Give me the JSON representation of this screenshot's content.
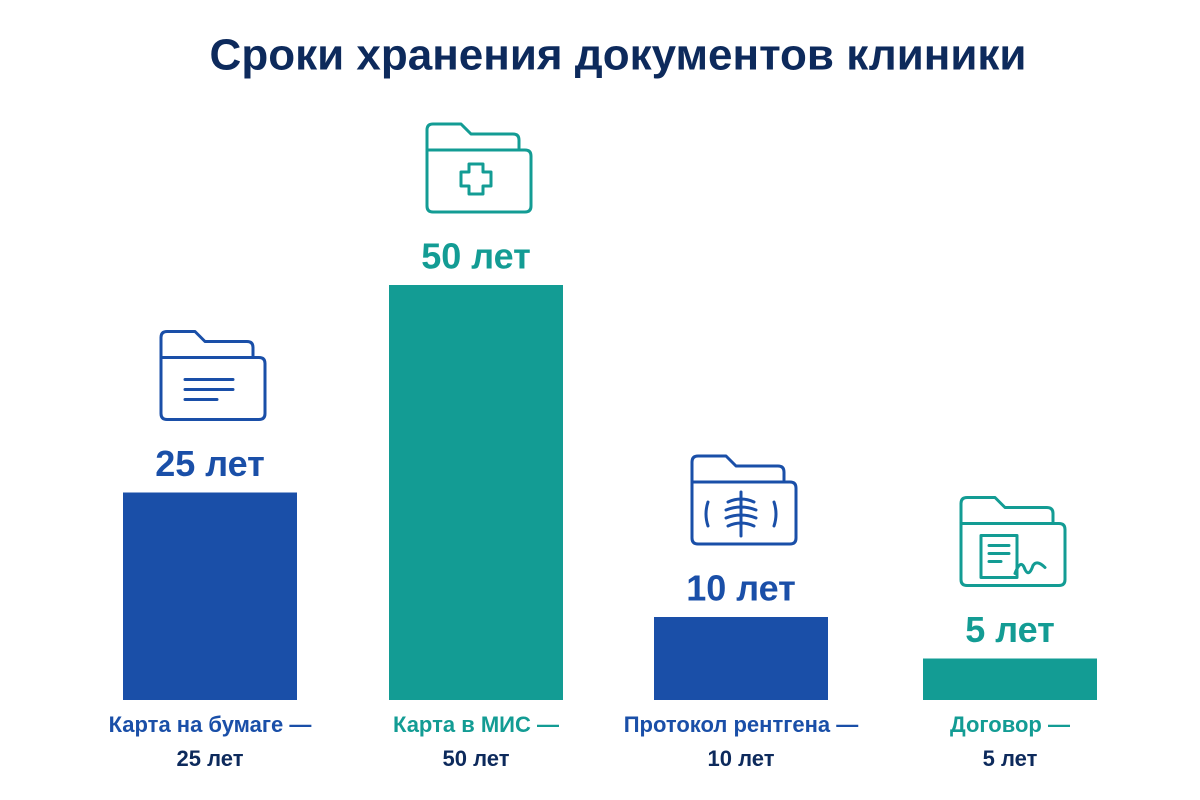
{
  "chart_data": {
    "type": "bar",
    "title": "Сроки хранения документов клиники",
    "categories": [
      [
        "Карта на бумаге —",
        "25 лет"
      ],
      [
        "Карта в МИС —",
        "50 лет"
      ],
      [
        "Протокол рентгена —",
        "10 лет"
      ],
      [
        "Договор —",
        "5 лет"
      ]
    ],
    "values": [
      25,
      50,
      10,
      5
    ],
    "value_labels": [
      "25 лет",
      "50 лет",
      "10 лет",
      "5 лет"
    ],
    "colors": [
      "#1a4fa8",
      "#139c94",
      "#1a4fa8",
      "#139c94"
    ]
  }
}
